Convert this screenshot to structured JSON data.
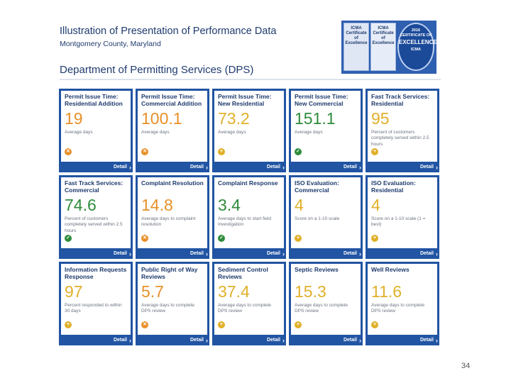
{
  "slide": {
    "title": "Illustration of Presentation of Performance Data",
    "subtitle": "Montgomery County, Maryland",
    "page_number": "34"
  },
  "badges": {
    "badge1": "ICMA Certificate of Excellence",
    "badge2": "ICMA Certificate of Excellence",
    "badge3_year": "2016",
    "badge3_text": "CERTIFICATE OF",
    "badge3_main": "EXCELLENCE",
    "badge3_org": "ICMA"
  },
  "dashboard": {
    "header": "Department of Permitting Services (DPS)",
    "detail_label": "Detail",
    "colors": {
      "red": "#c8442a",
      "orange": "#e7902a",
      "yellow": "#e0b02a",
      "green": "#2e8b3a",
      "blue": "#2154a3"
    },
    "tiles": [
      {
        "title": "Permit Issue Time: Residential Addition",
        "value": "19",
        "desc": "Average days",
        "status": "orange",
        "value_color": "#e7902a"
      },
      {
        "title": "Permit Issue Time: Commercial Addition",
        "value": "100.1",
        "desc": "Average days",
        "status": "orange",
        "value_color": "#e7902a"
      },
      {
        "title": "Permit Issue Time: New Residential",
        "value": "73.2",
        "desc": "Average days",
        "status": "yellow",
        "value_color": "#e0b02a"
      },
      {
        "title": "Permit Issue Time: New Commercial",
        "value": "151.1",
        "desc": "Average days",
        "status": "green",
        "value_color": "#2e8b3a"
      },
      {
        "title": "Fast Track Services: Residential",
        "value": "95",
        "desc": "Percent of customers completely served within 2.5 hours",
        "status": "yellow",
        "value_color": "#e0b02a"
      },
      {
        "title": "Fast Track Services: Commercial",
        "value": "74.6",
        "desc": "Percent of customers completely served within 2.5 hours",
        "status": "green",
        "value_color": "#2e8b3a"
      },
      {
        "title": "Complaint Resolution",
        "value": "14.8",
        "desc": "Average days to complaint resolution",
        "status": "orange",
        "value_color": "#e7902a"
      },
      {
        "title": "Complaint Response",
        "value": "3.4",
        "desc": "Average days to start field investigation",
        "status": "green",
        "value_color": "#2e8b3a"
      },
      {
        "title": "ISO Evaluation: Commercial",
        "value": "4",
        "desc": "Score on a 1-10 scale",
        "status": "yellow",
        "value_color": "#e0b02a"
      },
      {
        "title": "ISO Evaluation: Residential",
        "value": "4",
        "desc": "Score on a 1-10 scale (1 = best)",
        "status": "yellow",
        "value_color": "#e0b02a"
      },
      {
        "title": "Information Requests Response",
        "value": "97",
        "desc": "Percent responded to within 30 days",
        "status": "yellow",
        "value_color": "#e0b02a"
      },
      {
        "title": "Public Right of Way Reviews",
        "value": "5.7",
        "desc": "Average days to complete DPS review",
        "status": "orange",
        "value_color": "#e7902a"
      },
      {
        "title": "Sediment Control Reviews",
        "value": "37.4",
        "desc": "Average days to complete DPS review",
        "status": "yellow",
        "value_color": "#e0b02a"
      },
      {
        "title": "Septic Reviews",
        "value": "15.3",
        "desc": "Average days to complete DPS review",
        "status": "yellow",
        "value_color": "#e0b02a"
      },
      {
        "title": "Well Reviews",
        "value": "11.6",
        "desc": "Average days to complete DPS review",
        "status": "yellow",
        "value_color": "#e0b02a"
      }
    ]
  }
}
